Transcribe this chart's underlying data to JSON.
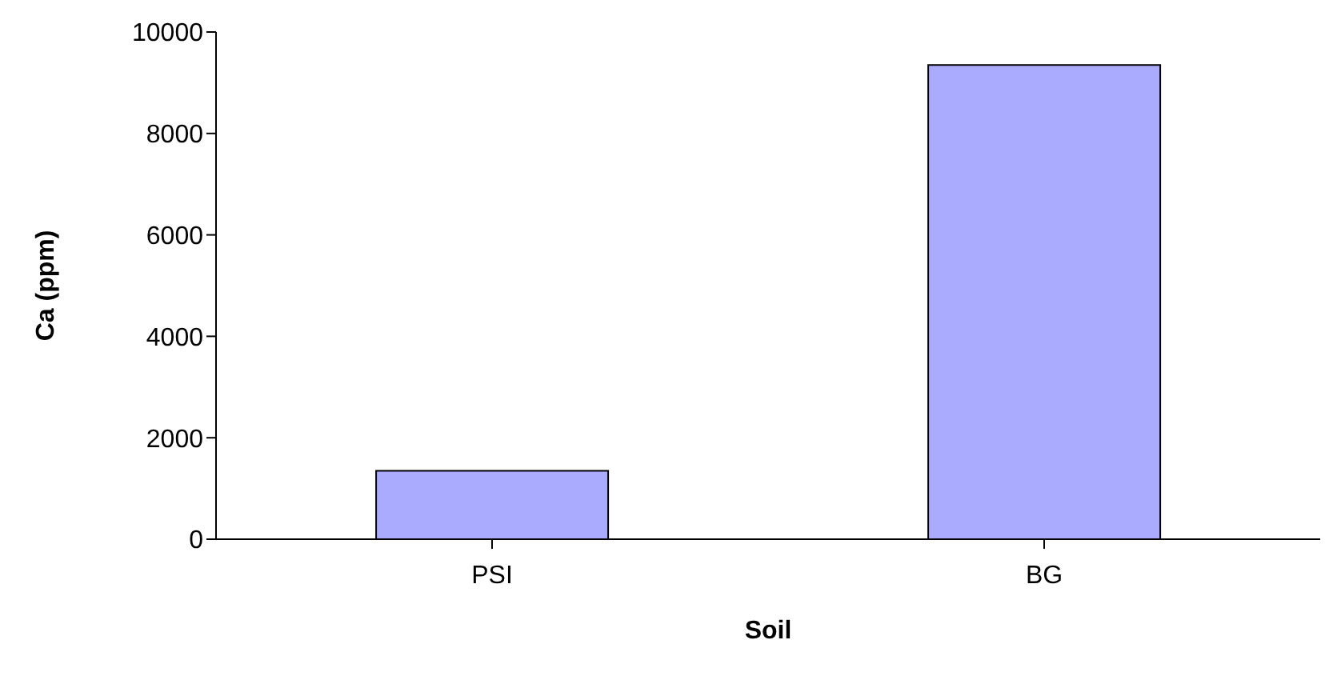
{
  "chart_data": {
    "type": "bar",
    "xlabel": "Soil",
    "ylabel": "Ca (ppm)",
    "categories": [
      "PSI",
      "BG"
    ],
    "values": [
      1350,
      9350
    ],
    "color": "#aaaaff",
    "ylim": [
      0,
      10000
    ],
    "yticks": [
      0,
      2000,
      4000,
      6000,
      8000,
      10000
    ],
    "grid": false,
    "legend": false
  }
}
